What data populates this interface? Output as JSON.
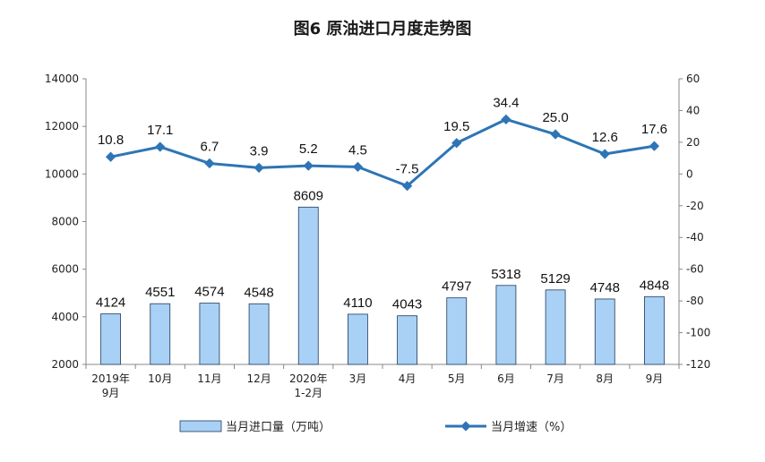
{
  "chart_data": {
    "type": "bar+line",
    "title": "图6 原油进口月度走势图",
    "categories": [
      [
        "2019年",
        "9月"
      ],
      [
        "10月"
      ],
      [
        "11月"
      ],
      [
        "12月"
      ],
      [
        "2020年",
        "1-2月"
      ],
      [
        "3月"
      ],
      [
        "4月"
      ],
      [
        "5月"
      ],
      [
        "6月"
      ],
      [
        "7月"
      ],
      [
        "8月"
      ],
      [
        "9月"
      ]
    ],
    "series": [
      {
        "name": "当月进口量（万吨）",
        "type": "bar",
        "axis": "left",
        "values": [
          4124,
          4551,
          4574,
          4548,
          8609,
          4110,
          4043,
          4797,
          5318,
          5129,
          4748,
          4848
        ],
        "labels": [
          "4124",
          "4551",
          "4574",
          "4548",
          "8609",
          "4110",
          "4043",
          "4797",
          "5318",
          "5129",
          "4748",
          "4848"
        ],
        "color": "#a9d0f5",
        "stroke": "#1f3a5c"
      },
      {
        "name": "当月增速（%）",
        "type": "line",
        "axis": "right",
        "values": [
          10.8,
          17.1,
          6.7,
          3.9,
          5.2,
          4.5,
          -7.5,
          19.5,
          34.4,
          25.0,
          12.6,
          17.6
        ],
        "labels": [
          "10.8",
          "17.1",
          "6.7",
          "3.9",
          "5.2",
          "4.5",
          "-7.5",
          "19.5",
          "34.4",
          "25.0",
          "12.6",
          "17.6"
        ],
        "color": "#2e75b6"
      }
    ],
    "y_left": {
      "min": 2000,
      "max": 14000,
      "ticks": [
        "2000",
        "4000",
        "6000",
        "8000",
        "10000",
        "12000",
        "14000"
      ]
    },
    "y_right": {
      "min": -120,
      "max": 60,
      "ticks": [
        "-120",
        "-100",
        "-80",
        "-60",
        "-40",
        "-20",
        "0",
        "20",
        "40",
        "60"
      ]
    },
    "grid": false,
    "legend": "bottom"
  }
}
